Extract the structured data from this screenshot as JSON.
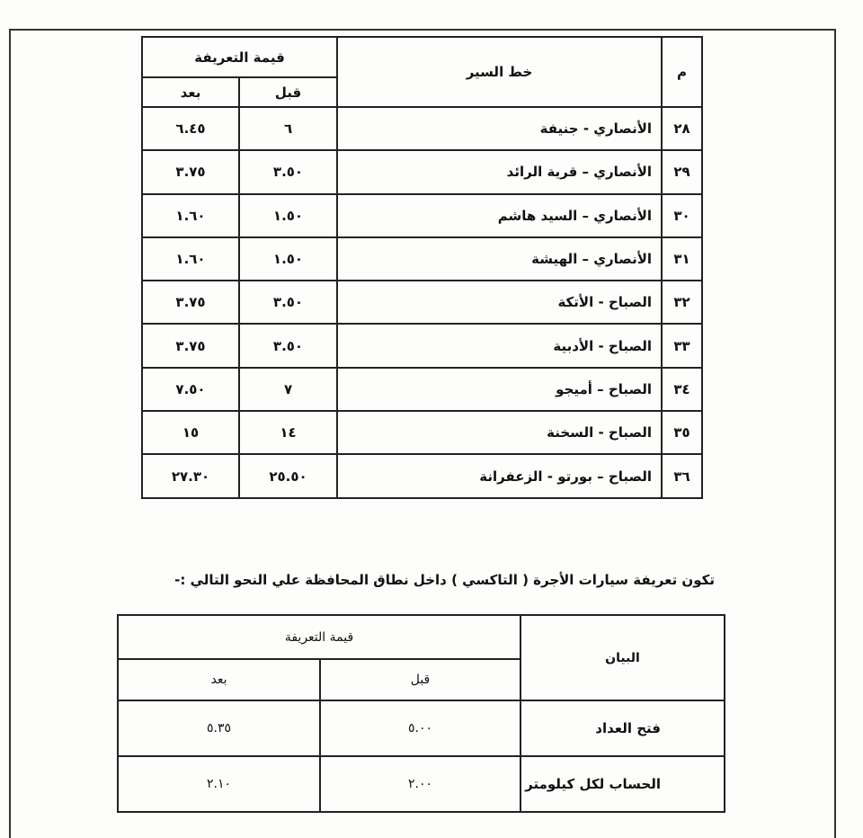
{
  "table1": {
    "header": {
      "no": "م",
      "route": "خط السير",
      "fare": "قيمة التعريفة",
      "before": "قبل",
      "after": "بعد"
    },
    "rows": [
      [
        "٢٨",
        "الأنصاري - جنيفة",
        "٦",
        "٦.٤٥"
      ],
      [
        "٢٩",
        "الأنصاري – قرية الرائد",
        "٣.٥٠",
        "٣.٧٥"
      ],
      [
        "٣٠",
        "الأنصاري – السيد هاشم",
        "١.٥٠",
        "١.٦٠"
      ],
      [
        "٣١",
        "الأنصاري – الهيشة",
        "١.٥٠",
        "١.٦٠"
      ],
      [
        "٣٢",
        "الصباح - الأتكة",
        "٣.٥٠",
        "٣.٧٥"
      ],
      [
        "٣٣",
        "الصباح - الأدبية",
        "٣.٥٠",
        "٣.٧٥"
      ],
      [
        "٣٤",
        "الصباح – أميجو",
        "٧",
        "٧.٥٠"
      ],
      [
        "٣٥",
        "الصباح - السخنة",
        "١٤",
        "١٥"
      ],
      [
        "٣٦",
        "الصباح – بورتو - الزعفرانة",
        "٢٥.٥٠",
        "٢٧.٣٠"
      ]
    ]
  },
  "paragraph": "تكون تعريفة سيارات الأجرة ( التاكسي ) داخل نطاق المحافظة علي النحو التالي :-",
  "table2": {
    "header": {
      "item": "البيان",
      "fare": "قيمة التعريفة",
      "before": "قبل",
      "after": "بعد"
    },
    "rows": [
      [
        "فتح العداد",
        "٥.٠٠",
        "٥.٣٥"
      ],
      [
        "الحساب لكل كيلومتر",
        "٢.٠٠",
        "٢.١٠"
      ]
    ]
  }
}
